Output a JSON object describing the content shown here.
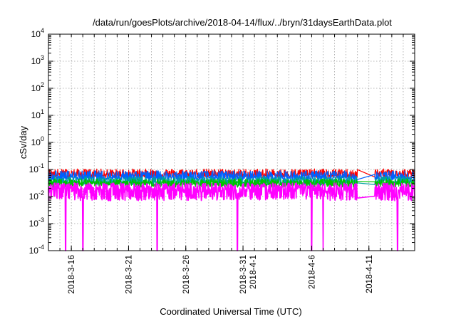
{
  "chart_data": {
    "type": "line",
    "title": "/data/run/goesPlots/archive/2018-04-14/flux/../bryn/31daysEarthData.plot",
    "xlabel": "Coordinated Universal Time (UTC)",
    "ylabel": "cSv/day",
    "y_scale": "log",
    "ylim": [
      0.0001,
      10000
    ],
    "xlim": [
      "2018-03-14",
      "2018-04-15"
    ],
    "grid": true,
    "legend": "none",
    "y_ticks": [
      {
        "value": 0.0001,
        "base": "10",
        "exp": "-4"
      },
      {
        "value": 0.001,
        "base": "10",
        "exp": "-3"
      },
      {
        "value": 0.01,
        "base": "10",
        "exp": "-2"
      },
      {
        "value": 0.1,
        "base": "10",
        "exp": "-1"
      },
      {
        "value": 1,
        "base": "10",
        "exp": "0"
      },
      {
        "value": 10,
        "base": "10",
        "exp": "1"
      },
      {
        "value": 100,
        "base": "10",
        "exp": "2"
      },
      {
        "value": 1000,
        "base": "10",
        "exp": "3"
      },
      {
        "value": 10000,
        "base": "10",
        "exp": "4"
      }
    ],
    "x_ticks": [
      {
        "date": "2018-03-16",
        "label": "2018-3-16"
      },
      {
        "date": "2018-03-21",
        "label": "2018-3-21"
      },
      {
        "date": "2018-03-26",
        "label": "2018-3-26"
      },
      {
        "date": "2018-03-31",
        "label": "2018-3-31",
        "label2": "2018-4-1"
      },
      {
        "date": "2018-04-06",
        "label": "2018-4-6"
      },
      {
        "date": "2018-04-11",
        "label": "2018-4-11"
      }
    ],
    "x_grid_dates": [
      "2018-03-14",
      "2018-03-15",
      "2018-03-16",
      "2018-03-17",
      "2018-03-18",
      "2018-03-19",
      "2018-03-20",
      "2018-03-21",
      "2018-03-22",
      "2018-03-23",
      "2018-03-24",
      "2018-03-25",
      "2018-03-26",
      "2018-03-27",
      "2018-03-28",
      "2018-03-29",
      "2018-03-30",
      "2018-03-31",
      "2018-04-01",
      "2018-04-02",
      "2018-04-03",
      "2018-04-04",
      "2018-04-05",
      "2018-04-06",
      "2018-04-07",
      "2018-04-08",
      "2018-04-09",
      "2018-04-10",
      "2018-04-11",
      "2018-04-12",
      "2018-04-13",
      "2018-04-14",
      "2018-04-15"
    ],
    "data_gap": [
      "2018-04-10T00:00",
      "2018-04-11T12:00"
    ],
    "dropouts": [
      "2018-03-15T12:00",
      "2018-03-17T00:00",
      "2018-03-23T12:00",
      "2018-03-30T12:00",
      "2018-04-06T00:00",
      "2018-04-07T00:00",
      "2018-04-13T12:00"
    ],
    "series": [
      {
        "color": "#ff0000",
        "values": {
          "mean": 0.065,
          "min": 0.05,
          "max": 0.105
        }
      },
      {
        "color": "#0060ff",
        "values": {
          "mean": 0.052,
          "min": 0.04,
          "max": 0.09
        }
      },
      {
        "color": "#00a0a0",
        "values": {
          "mean": 0.035,
          "min": 0.026,
          "max": 0.055
        }
      },
      {
        "color": "#00c000",
        "values": {
          "mean": 0.03,
          "min": 0.022,
          "max": 0.045
        }
      },
      {
        "color": "#ff00ff",
        "values": {
          "mean": 0.017,
          "min": 0.007,
          "max": 0.032
        }
      }
    ]
  }
}
